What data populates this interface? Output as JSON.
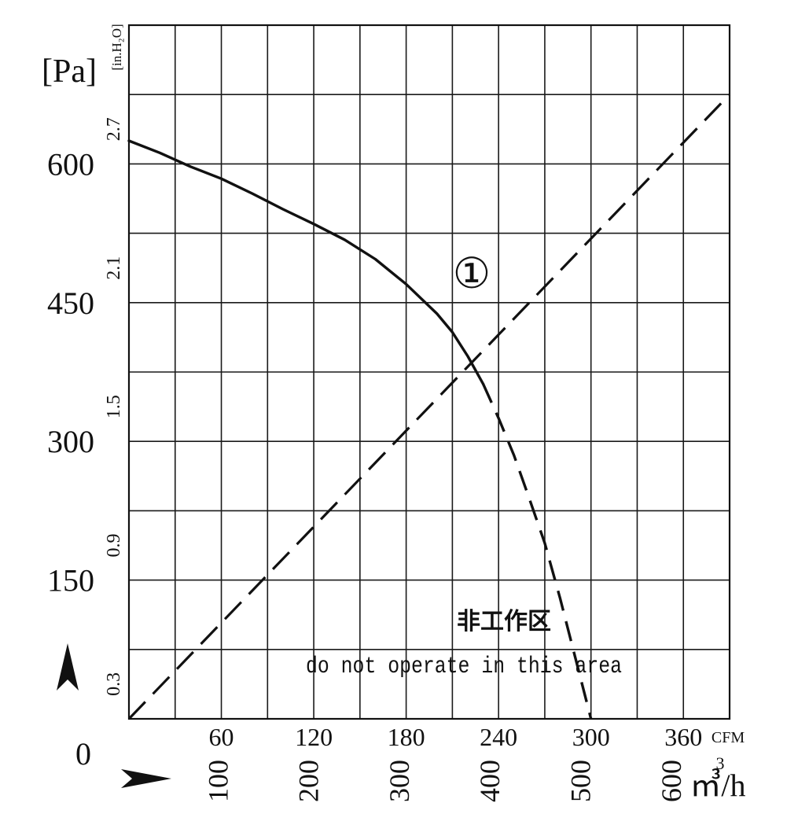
{
  "chart_data": {
    "type": "line",
    "title": "",
    "axes": {
      "x_cfm": {
        "label": "CFM",
        "ticks": [
          "60",
          "120",
          "180",
          "240",
          "300",
          "360"
        ],
        "range": [
          0,
          390
        ]
      },
      "x_m3h": {
        "label": "m³/h",
        "unit_main": "㎥/h",
        "unit_sup": "3",
        "ticks": [
          "100",
          "200",
          "300",
          "400",
          "500",
          "600"
        ]
      },
      "y_pa": {
        "label": "[Pa]",
        "ticks": [
          "0",
          "150",
          "300",
          "450",
          "600"
        ],
        "range": [
          0,
          750
        ]
      },
      "y_inh2o": {
        "label": "[in.H₂O]",
        "ticks": [
          "0.3",
          "0.9",
          "1.5",
          "2.1",
          "2.7"
        ]
      }
    },
    "grid": true,
    "series": [
      {
        "name": "①",
        "style": "solid-then-dashed",
        "points_cfm_pa": [
          [
            0,
            625
          ],
          [
            20,
            612
          ],
          [
            40,
            597
          ],
          [
            60,
            584
          ],
          [
            80,
            568
          ],
          [
            100,
            551
          ],
          [
            120,
            535
          ],
          [
            140,
            518
          ],
          [
            160,
            497
          ],
          [
            180,
            470
          ],
          [
            200,
            438
          ],
          [
            210,
            418
          ],
          [
            220,
            392
          ],
          [
            230,
            362
          ],
          [
            240,
            325
          ],
          [
            250,
            285
          ],
          [
            260,
            238
          ],
          [
            270,
            190
          ],
          [
            280,
            130
          ],
          [
            290,
            65
          ],
          [
            300,
            0
          ]
        ],
        "dashed_from_cfm": 238
      },
      {
        "name": "",
        "style": "dashed",
        "points_cfm_pa": [
          [
            0,
            0
          ],
          [
            390,
            675
          ]
        ]
      }
    ],
    "annotations": {
      "curve_marker": "①",
      "zone_cn": "非工作区",
      "zone_en": "do not operate in this area"
    },
    "x_arrow": "➤",
    "y_arrow": "➤"
  }
}
